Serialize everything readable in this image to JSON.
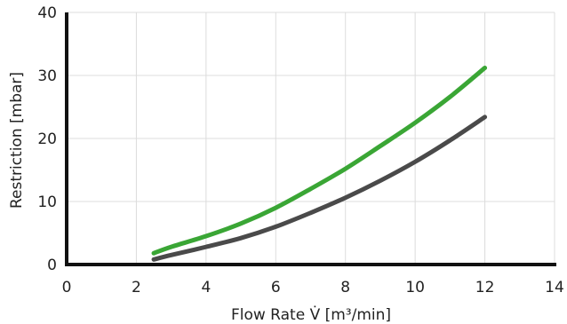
{
  "chart_data": {
    "type": "line",
    "title": "",
    "xlabel": "Flow Rate V̇ [m³/min]",
    "ylabel": "Restriction [mbar]",
    "xlim": [
      0,
      14
    ],
    "ylim": [
      0,
      40
    ],
    "x_ticks": [
      0,
      2,
      4,
      6,
      8,
      10,
      12,
      14
    ],
    "y_ticks": [
      0,
      10,
      20,
      30,
      40
    ],
    "grid": true,
    "legend": "none",
    "series": [
      {
        "color": "#3aa635",
        "x": [
          2.5,
          3,
          4,
          5,
          6,
          7,
          8,
          9,
          10,
          11,
          12
        ],
        "y": [
          1.8,
          2.8,
          4.5,
          6.5,
          9.0,
          12.0,
          15.2,
          18.8,
          22.5,
          26.6,
          31.2
        ]
      },
      {
        "color": "#4a4a4a",
        "x": [
          2.5,
          3,
          4,
          5,
          6,
          7,
          8,
          9,
          10,
          11,
          12
        ],
        "y": [
          0.8,
          1.5,
          2.8,
          4.2,
          6.0,
          8.2,
          10.6,
          13.3,
          16.3,
          19.7,
          23.4
        ]
      }
    ]
  }
}
